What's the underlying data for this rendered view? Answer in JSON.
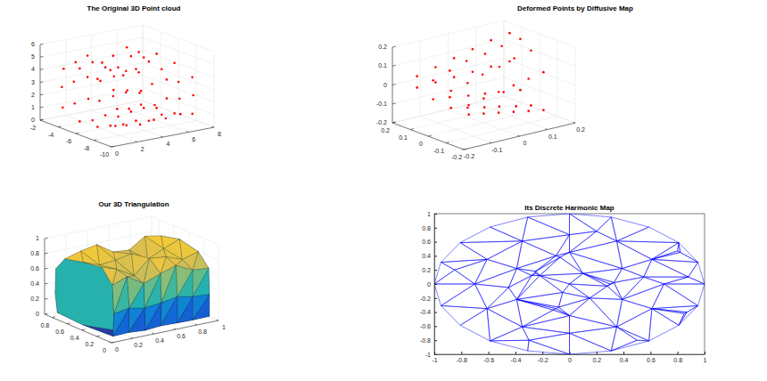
{
  "chart_data": [
    {
      "type": "scatter3d",
      "title": "The Original 3D Point cloud",
      "color": "#ff0000",
      "marker": "dot",
      "grid": true,
      "xlim": [
        0,
        8
      ],
      "xticks": [
        0,
        2,
        4,
        6,
        8
      ],
      "ylim": [
        -10,
        -2
      ],
      "yticks": [
        -10,
        -8,
        -6,
        -4,
        -2
      ],
      "zlim": [
        0,
        6
      ],
      "zticks": [
        0,
        1,
        2,
        3,
        4,
        5,
        6
      ],
      "x": [
        1,
        1,
        1,
        1,
        1,
        1,
        1,
        1,
        1,
        1,
        2,
        2,
        2,
        2,
        2,
        2,
        2,
        2,
        2,
        2,
        3,
        3,
        3,
        3,
        3,
        3,
        3,
        3,
        3,
        3,
        4,
        4,
        4,
        4,
        4,
        4,
        4,
        4,
        4,
        4,
        5,
        5,
        5,
        5,
        5,
        5,
        5,
        5,
        5,
        5,
        6,
        6,
        6,
        6,
        6,
        6,
        6,
        6,
        6,
        6,
        7,
        7,
        7,
        7,
        7,
        7,
        7,
        7,
        7,
        7
      ],
      "y": [
        -9,
        -9.2,
        -8.8,
        -7,
        -5,
        -3.2,
        -3,
        -3.1,
        -5,
        -7,
        -8.8,
        -9.1,
        -8.9,
        -7,
        -5,
        -3.1,
        -2.9,
        -3,
        -5,
        -7,
        -8.9,
        -9,
        -9,
        -7,
        -5,
        -3,
        -3,
        -3.1,
        -5,
        -7,
        -9,
        -9.1,
        -8.8,
        -7,
        -5,
        -3.2,
        -3,
        -2.9,
        -5,
        -7,
        -8.9,
        -9,
        -9,
        -7,
        -5,
        -3,
        -3.1,
        -3,
        -5,
        -7,
        -9.1,
        -9,
        -8.9,
        -7,
        -5,
        -3.1,
        -3,
        -3,
        -5,
        -7,
        -9,
        -9.1,
        -9,
        -7,
        -5,
        -3,
        -3,
        -3.1,
        -5,
        -7
      ],
      "z": [
        1.2,
        2.6,
        4,
        4.4,
        4.7,
        4.2,
        2.7,
        1.1,
        0.5,
        0.6,
        1,
        2.4,
        3.8,
        4.9,
        5,
        4.5,
        2.9,
        1.2,
        0.4,
        0.5,
        0.9,
        2.5,
        3.6,
        4.3,
        4.4,
        4.8,
        3.1,
        1.4,
        0.6,
        0.4,
        1.1,
        2.3,
        3.9,
        4.6,
        4.2,
        4.1,
        2.6,
        1,
        0.3,
        0.5,
        1,
        2.6,
        4.1,
        5,
        4.9,
        4.4,
        2.8,
        1.2,
        0.5,
        0.3,
        1.2,
        2.4,
        3.7,
        4.2,
        4.6,
        4.9,
        3,
        1.3,
        0.6,
        0.6,
        1,
        2.5,
        3.9,
        4.5,
        4.7,
        4.3,
        2.7,
        1.1,
        0.4,
        0.5
      ]
    },
    {
      "type": "scatter3d",
      "title": "Deformed Points by Diffusive Map",
      "color": "#ff0000",
      "marker": "dot",
      "grid": true,
      "xlim": [
        -0.2,
        0.2
      ],
      "xticks": [
        -0.2,
        -0.1,
        0,
        0.1,
        0.2
      ],
      "ylim": [
        -0.2,
        0.2
      ],
      "yticks": [
        -0.2,
        -0.1,
        0,
        0.1,
        0.2
      ],
      "zlim": [
        -0.2,
        0.2
      ],
      "zticks": [
        -0.2,
        -0.1,
        0,
        0.1,
        0.2
      ],
      "x": [
        -0.15,
        -0.15,
        -0.15,
        -0.15,
        -0.15,
        -0.15,
        -0.15,
        -0.15,
        -0.09,
        -0.09,
        -0.09,
        -0.09,
        -0.09,
        -0.09,
        -0.09,
        -0.09,
        -0.03,
        -0.03,
        -0.03,
        -0.03,
        -0.03,
        -0.03,
        -0.03,
        -0.03,
        0.03,
        0.03,
        0.03,
        0.03,
        0.03,
        0.03,
        0.03,
        0.03,
        0.09,
        0.09,
        0.09,
        0.09,
        0.09,
        0.09,
        0.09,
        0.09,
        0.15,
        0.15,
        0.15,
        0.15,
        0.15,
        0.15,
        0.15,
        0.15
      ],
      "y": [
        -0.15,
        -0.15,
        -0.05,
        0.05,
        0.14,
        0.14,
        0.05,
        -0.05,
        -0.14,
        -0.14,
        -0.05,
        0.05,
        0.13,
        0.13,
        0.05,
        -0.05,
        -0.13,
        -0.13,
        -0.04,
        0.05,
        0.12,
        0.12,
        0.04,
        -0.05,
        -0.12,
        -0.12,
        -0.04,
        0.04,
        0.11,
        0.11,
        0.04,
        -0.04,
        -0.11,
        -0.11,
        -0.03,
        0.04,
        0.1,
        0.1,
        0.03,
        -0.04,
        -0.1,
        -0.1,
        -0.03,
        0.03,
        0.09,
        0.09,
        0.03,
        -0.03
      ],
      "z": [
        -0.05,
        0,
        0.04,
        0.06,
        0.05,
        -0.01,
        -0.04,
        -0.05,
        -0.07,
        0.01,
        0.06,
        0.09,
        0.08,
        0,
        -0.05,
        -0.07,
        -0.09,
        0.02,
        0.08,
        0.12,
        0.11,
        0.01,
        -0.06,
        -0.09,
        -0.11,
        0.03,
        0.1,
        0.14,
        0.14,
        0.02,
        -0.07,
        -0.11,
        -0.13,
        0.04,
        0.12,
        0.16,
        0.17,
        0.03,
        -0.08,
        -0.13,
        -0.15,
        0.05,
        0.14,
        0.18,
        0.19,
        0.04,
        -0.09,
        -0.15
      ]
    },
    {
      "type": "surface3d",
      "title": "Our 3D Triangulation",
      "grid": true,
      "xlim": [
        0,
        1
      ],
      "xticks": [
        0,
        0.2,
        0.4,
        0.6,
        0.8,
        1
      ],
      "ylim": [
        0,
        0.9
      ],
      "yticks": [
        0,
        0.2,
        0.4,
        0.6,
        0.8
      ],
      "zlim": [
        0,
        1
      ],
      "zticks": [
        0,
        0.2,
        0.4,
        0.6,
        0.8,
        1
      ],
      "x": [
        0.05,
        0.2,
        0.35,
        0.5,
        0.65,
        0.8,
        0.95
      ],
      "y": [
        [
          0.05,
          0.04,
          0.06,
          0.2,
          0.45,
          0.7,
          0.82,
          0.83,
          0.8,
          0.45
        ],
        [
          0.06,
          0.05,
          0.08,
          0.22,
          0.45,
          0.7,
          0.83,
          0.84,
          0.81,
          0.45
        ],
        [
          0.05,
          0.06,
          0.07,
          0.2,
          0.45,
          0.7,
          0.84,
          0.85,
          0.82,
          0.45
        ],
        [
          0.06,
          0.05,
          0.06,
          0.21,
          0.45,
          0.7,
          0.83,
          0.84,
          0.81,
          0.45
        ],
        [
          0.05,
          0.05,
          0.07,
          0.2,
          0.45,
          0.7,
          0.82,
          0.83,
          0.8,
          0.45
        ],
        [
          0.06,
          0.06,
          0.06,
          0.2,
          0.45,
          0.7,
          0.83,
          0.84,
          0.81,
          0.45
        ],
        [
          0.05,
          0.05,
          0.06,
          0.2,
          0.45,
          0.7,
          0.82,
          0.83,
          0.8,
          0.45
        ]
      ],
      "z": [
        [
          0.05,
          0.35,
          0.72,
          0.9,
          0.86,
          0.8,
          0.62,
          0.3,
          0.05,
          0.03
        ],
        [
          0.05,
          0.38,
          0.78,
          0.82,
          0.78,
          0.86,
          0.66,
          0.32,
          0.05,
          0.02
        ],
        [
          0.04,
          0.33,
          0.65,
          0.7,
          0.8,
          0.9,
          0.7,
          0.33,
          0.04,
          0.02
        ],
        [
          0.05,
          0.36,
          0.74,
          0.88,
          0.84,
          0.76,
          0.58,
          0.3,
          0.05,
          0.03
        ],
        [
          0.05,
          0.4,
          0.8,
          0.86,
          0.72,
          0.74,
          0.6,
          0.31,
          0.04,
          0.02
        ],
        [
          0.04,
          0.35,
          0.7,
          0.78,
          0.82,
          0.88,
          0.68,
          0.33,
          0.05,
          0.03
        ],
        [
          0.05,
          0.34,
          0.68,
          0.84,
          0.9,
          0.84,
          0.62,
          0.3,
          0.05,
          0.03
        ]
      ]
    },
    {
      "type": "mesh",
      "title": "Its Discrete Harmonic Map",
      "color": "#0000ff",
      "xlim": [
        -1,
        1
      ],
      "xticks": [
        -1,
        -0.8,
        -0.6,
        -0.4,
        -0.2,
        0,
        0.2,
        0.4,
        0.6,
        0.8,
        1
      ],
      "ylim": [
        -1,
        1
      ],
      "yticks": [
        -1,
        -0.8,
        -0.6,
        -0.4,
        -0.2,
        0,
        0.2,
        0.4,
        0.6,
        0.8,
        1
      ],
      "x": [
        1,
        0.951,
        0.809,
        0.588,
        0.309,
        0,
        -0.309,
        -0.588,
        -0.809,
        -0.951,
        -1,
        -0.951,
        -0.809,
        -0.588,
        -0.309,
        0,
        0.309,
        0.588,
        0.809,
        0.951,
        0.7,
        0.61,
        0.35,
        0,
        -0.35,
        -0.61,
        -0.7,
        -0.61,
        -0.35,
        0,
        0.35,
        0.61,
        0.39,
        0,
        -0.39,
        -0.39,
        0,
        0.39,
        -0.25,
        -0.22,
        -0.28,
        -0.25,
        0.3,
        0.33,
        0.28,
        -0.1,
        -0.08,
        -0.12,
        -0.1,
        -0.07,
        0.82,
        0.8,
        0.85,
        0.87,
        0,
        0.1,
        -0.05,
        0.15,
        -0.45,
        0.55,
        0.2,
        -0.3,
        0.5,
        -0.85,
        0.88
      ],
      "y": [
        0,
        0.309,
        0.588,
        0.809,
        0.951,
        1,
        0.951,
        0.809,
        0.588,
        0.309,
        0,
        -0.309,
        -0.588,
        -0.809,
        -0.951,
        -1,
        -0.951,
        -0.809,
        -0.588,
        -0.309,
        0,
        0.35,
        0.61,
        0.7,
        0.61,
        0.35,
        0,
        -0.35,
        -0.61,
        -0.7,
        -0.61,
        -0.35,
        0.22,
        0.45,
        0.22,
        -0.22,
        -0.45,
        -0.22,
        0.15,
        0.12,
        0.12,
        0.18,
        0,
        0.02,
        -0.03,
        -0.35,
        -0.33,
        -0.37,
        0.4,
        0.38,
        0.45,
        0.47,
        -0.42,
        -0.4,
        0,
        0.15,
        -0.12,
        -0.2,
        -0.05,
        0.1,
        0.75,
        -0.8,
        -0.8,
        0.2,
        0.1
      ]
    }
  ]
}
